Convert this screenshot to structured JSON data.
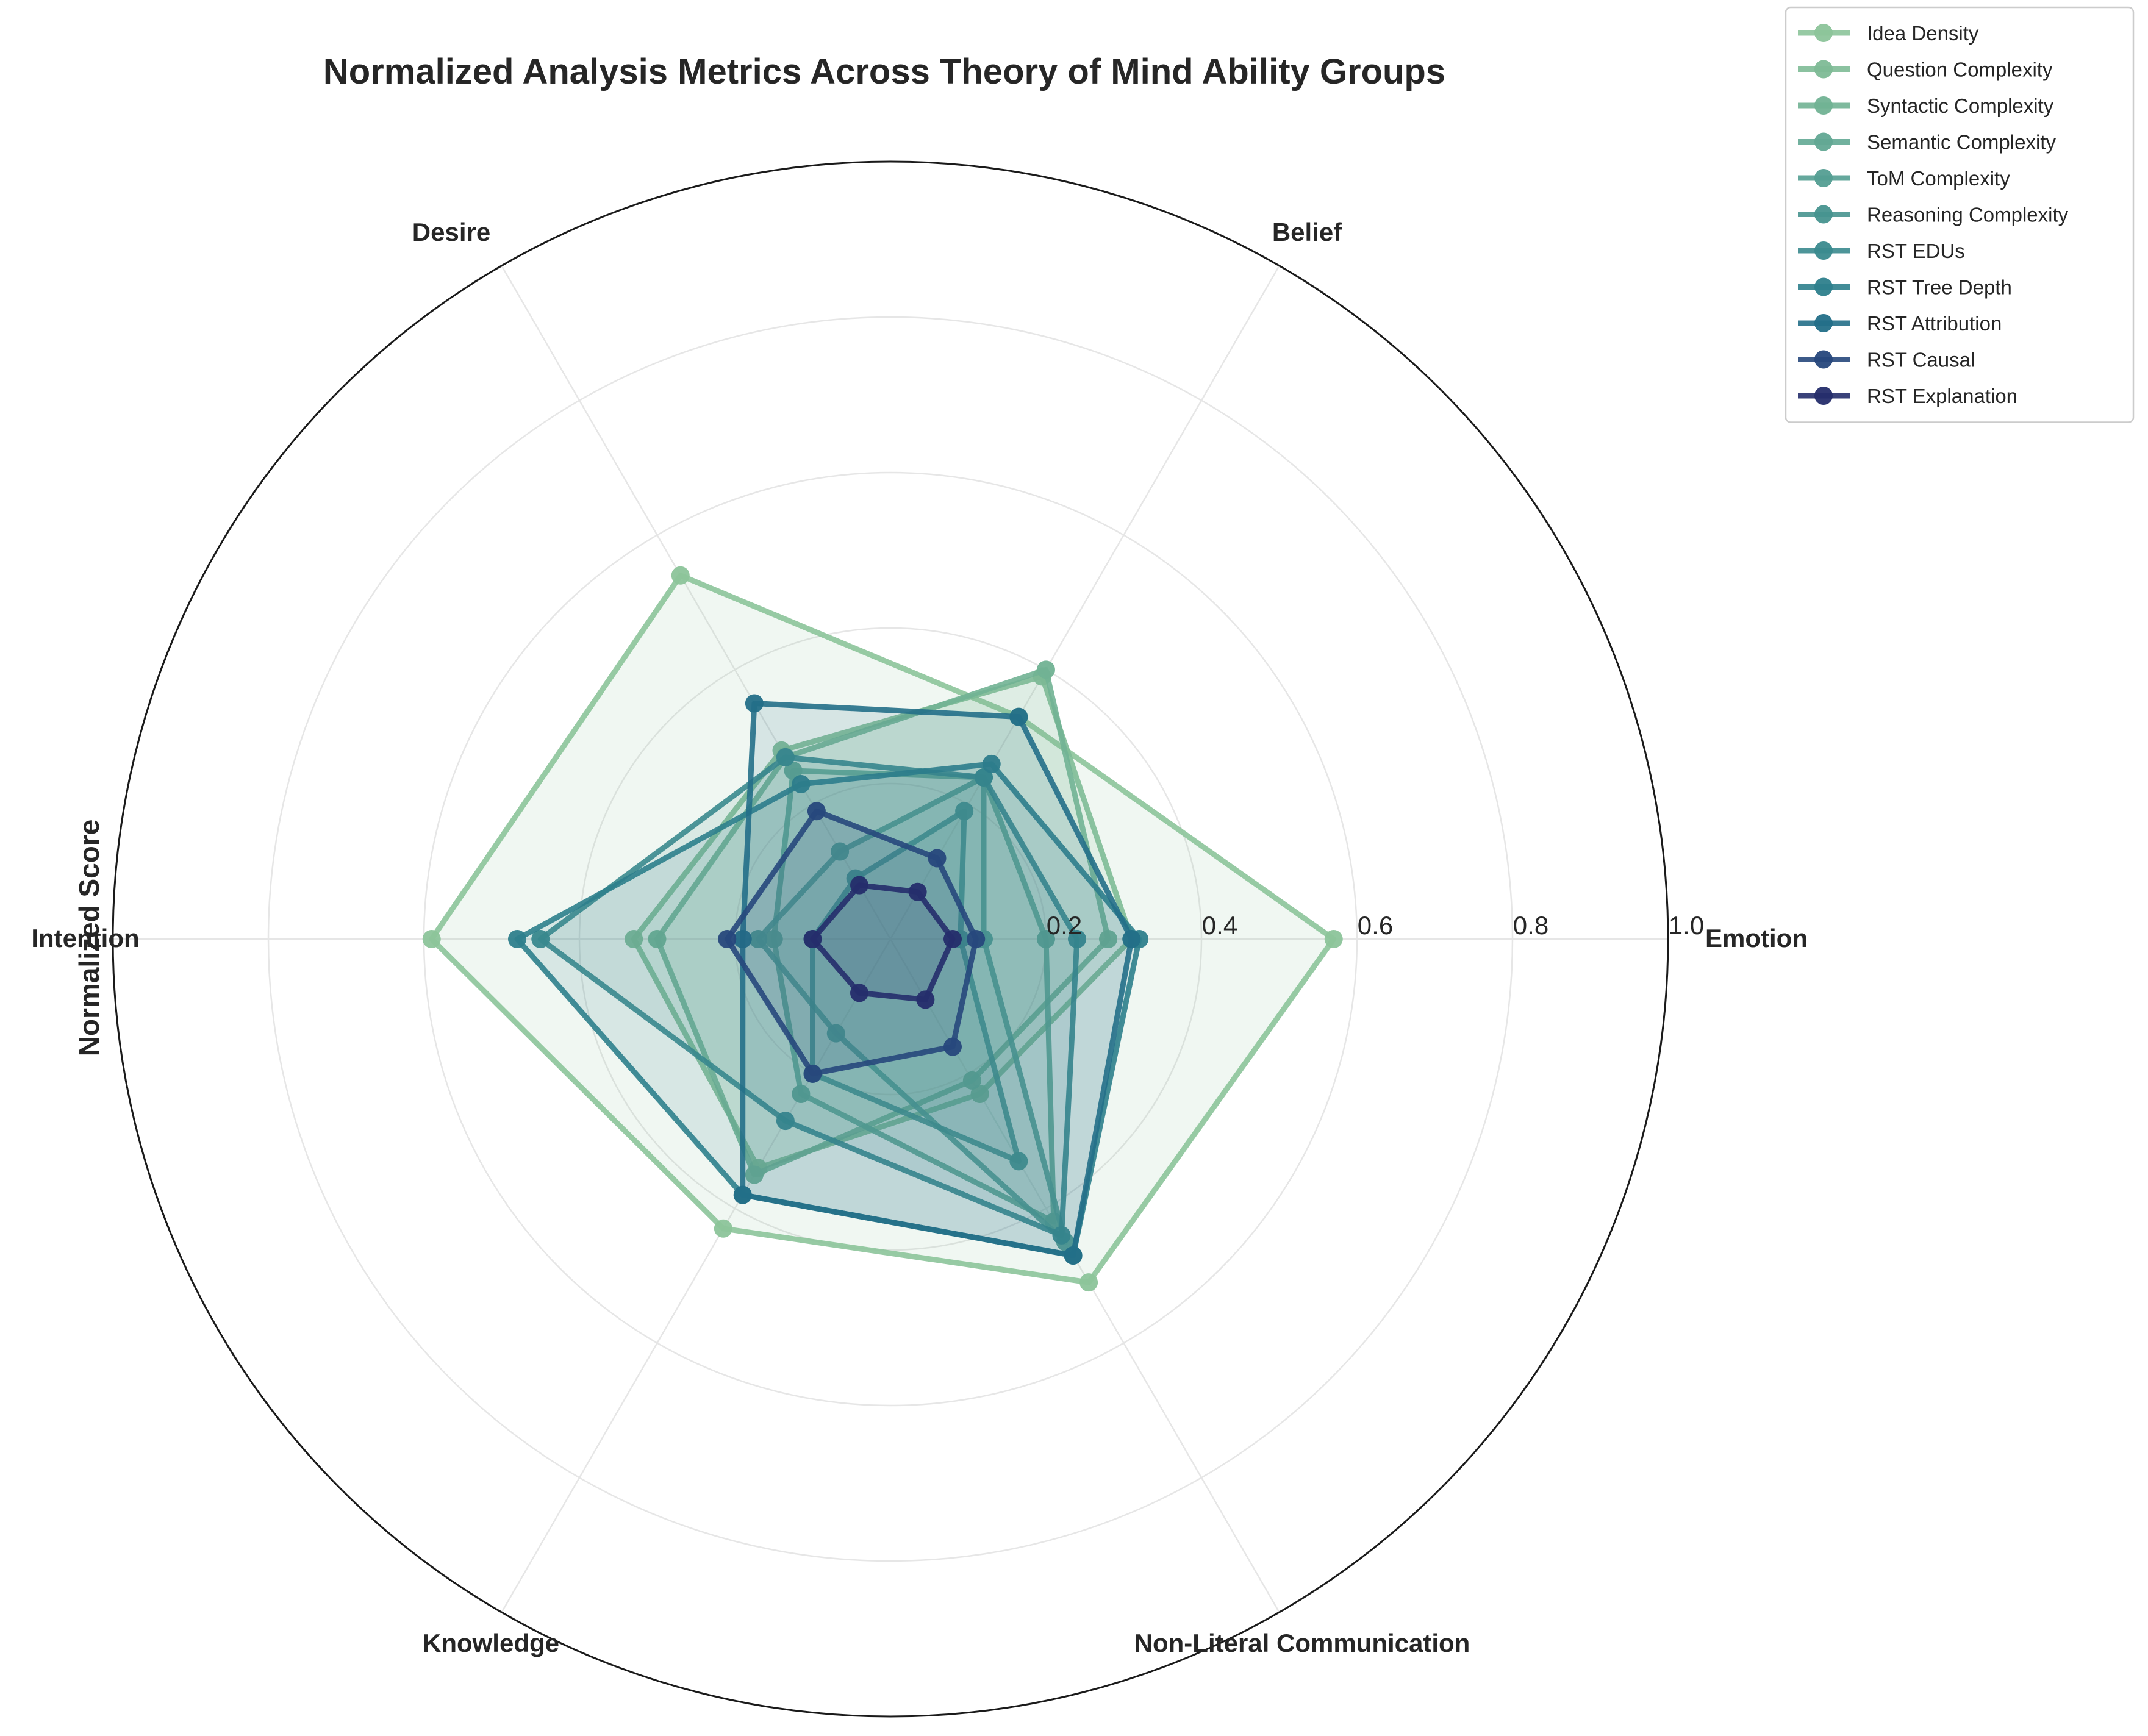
{
  "chart_data": {
    "type": "radar",
    "title": "Normalized Analysis Metrics Across Theory of Mind Ability Groups",
    "ylabel": "Normalized Score",
    "categories": [
      "Emotion",
      "Belief",
      "Desire",
      "Intention",
      "Knowledge",
      "Non-Literal Communication"
    ],
    "rlim": [
      0,
      1.0
    ],
    "rticks": [
      "0.2",
      "0.4",
      "0.6",
      "0.8",
      "1.0"
    ],
    "rtick_values": [
      0.2,
      0.4,
      0.6,
      0.8,
      1.0
    ],
    "grid": true,
    "legend_position": "top-right",
    "series": [
      {
        "name": "Idea Density",
        "color": "#8cc49a",
        "values": [
          0.57,
          0.33,
          0.54,
          0.59,
          0.43,
          0.51
        ]
      },
      {
        "name": "Question Complexity",
        "color": "#7ebb96",
        "values": [
          0.31,
          0.39,
          0.28,
          0.33,
          0.34,
          0.23
        ]
      },
      {
        "name": "Syntactic Complexity",
        "color": "#71b294",
        "values": [
          0.28,
          0.4,
          0.27,
          0.3,
          0.35,
          0.21
        ]
      },
      {
        "name": "Semantic Complexity",
        "color": "#62a893",
        "values": [
          0.2,
          0.24,
          0.25,
          0.15,
          0.23,
          0.42
        ]
      },
      {
        "name": "ToM Complexity",
        "color": "#549e92",
        "values": [
          0.12,
          0.24,
          0.13,
          0.17,
          0.14,
          0.45
        ]
      },
      {
        "name": "Reasoning Complexity",
        "color": "#47948f",
        "values": [
          0.09,
          0.19,
          0.09,
          0.1,
          0.2,
          0.33
        ]
      },
      {
        "name": "RST EDUs",
        "color": "#3a8a8e",
        "values": [
          0.24,
          0.24,
          0.27,
          0.45,
          0.27,
          0.44
        ]
      },
      {
        "name": "RST Tree Depth",
        "color": "#2e7f8c",
        "values": [
          0.32,
          0.26,
          0.23,
          0.48,
          0.38,
          0.47
        ]
      },
      {
        "name": "RST Attribution",
        "color": "#236f88",
        "values": [
          0.31,
          0.33,
          0.35,
          0.19,
          0.38,
          0.47
        ]
      },
      {
        "name": "RST Causal",
        "color": "#27487c",
        "values": [
          0.11,
          0.12,
          0.19,
          0.21,
          0.2,
          0.16
        ]
      },
      {
        "name": "RST Explanation",
        "color": "#252d6c",
        "values": [
          0.08,
          0.07,
          0.08,
          0.1,
          0.08,
          0.09
        ]
      }
    ]
  }
}
